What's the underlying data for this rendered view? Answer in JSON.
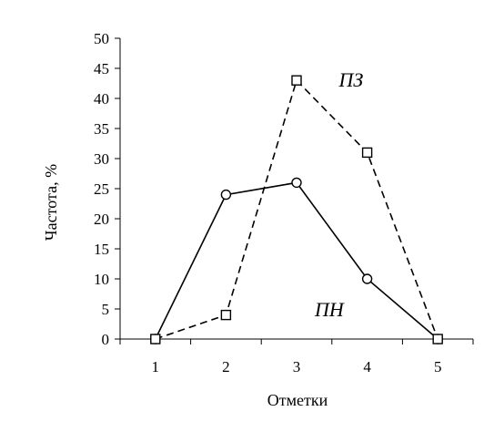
{
  "chart_data": {
    "type": "line",
    "xlabel": "Отметки",
    "ylabel": "Частота, %",
    "x": [
      1,
      2,
      3,
      4,
      5
    ],
    "ylim": [
      0,
      50
    ],
    "yticks": [
      0,
      5,
      10,
      15,
      20,
      25,
      30,
      35,
      40,
      45,
      50
    ],
    "grid": false,
    "series": [
      {
        "name": "ПН",
        "values": [
          0,
          24,
          26,
          10,
          0
        ],
        "line": "solid",
        "marker": "circle"
      },
      {
        "name": "ПЗ",
        "values": [
          0,
          4,
          43,
          31,
          0
        ],
        "line": "dashed",
        "marker": "square"
      }
    ]
  }
}
